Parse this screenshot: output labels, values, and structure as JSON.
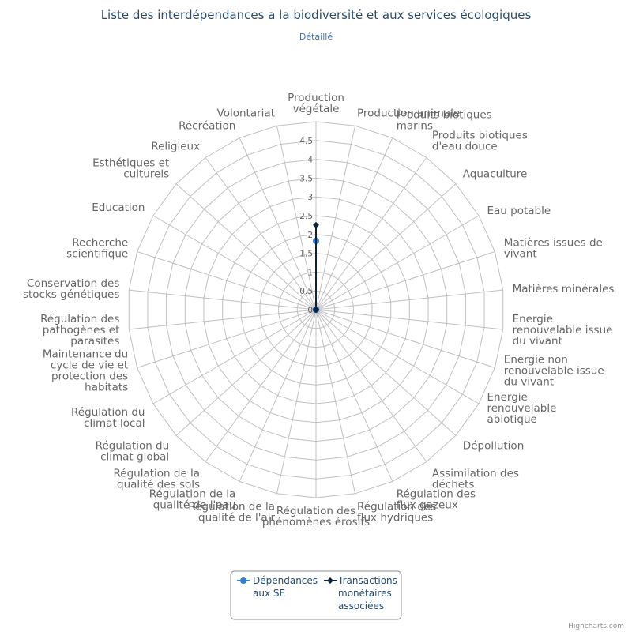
{
  "chart_data": {
    "type": "radar",
    "title": "Liste des interdépendances a la biodiversité et aux services écologiques",
    "subtitle": "Détaillé",
    "categories": [
      "Production végétale",
      "Production animale",
      "Produits biotiques marins",
      "Produits biotiques d'eau douce",
      "Aquaculture",
      "Eau potable",
      "Matières issues de vivant",
      "Matières minérales",
      "Energie renouvelable issue du vivant",
      "Energie non renouvelable issue du vivant",
      "Energie renouvelable abiotique",
      "Dépollution",
      "Assimilation des déchets",
      "Régulation des flux gazeux",
      "Régulation des flux hydriques",
      "Régulation des phénomènes érosifs",
      "Régulation de la qualité de l'air",
      "Régulation de la qualité de l'eau",
      "Régulation de la qualité des sols",
      "Régulation du climat global",
      "Régulation du climat local",
      "Maintenance du cycle de vie et protection des habitats",
      "Régulation des pathogènes et parasites",
      "Conservation des stocks génétiques",
      "Recherche scientifique",
      "Education",
      "Esthétiques et culturels",
      "Religieux",
      "Récréation",
      "Volontariat"
    ],
    "y_ticks": [
      "0",
      "0.5",
      "1",
      "1.5",
      "2",
      "2.5",
      "3",
      "3.5",
      "4",
      "4.5"
    ],
    "ylim": [
      0,
      5
    ],
    "series": [
      {
        "name": "Dépendances aux SE",
        "color": "#2f7ed8",
        "marker": "circle",
        "values": [
          1.83,
          0,
          0,
          0,
          0,
          0,
          0,
          0,
          0,
          0,
          0,
          0,
          0,
          0,
          0,
          0,
          0,
          0,
          0,
          0,
          0,
          0,
          0,
          0,
          0,
          0,
          0,
          0,
          0,
          0
        ]
      },
      {
        "name": "Transactions monétaires associées",
        "color": "#0d233a",
        "marker": "diamond",
        "values": [
          2.25,
          0,
          0,
          0,
          0,
          0,
          0,
          0,
          0,
          0,
          0,
          0,
          0,
          0,
          0,
          0,
          0,
          0,
          0,
          0,
          0,
          0,
          0,
          0,
          0,
          0,
          0,
          0,
          0,
          0
        ]
      }
    ],
    "legend": {
      "position": "bottom-center",
      "items": [
        [
          "Dépendances",
          "aux SE"
        ],
        [
          "Transactions",
          "monétaires",
          "associées"
        ]
      ]
    },
    "grid": true
  },
  "credits": "Highcharts.com"
}
